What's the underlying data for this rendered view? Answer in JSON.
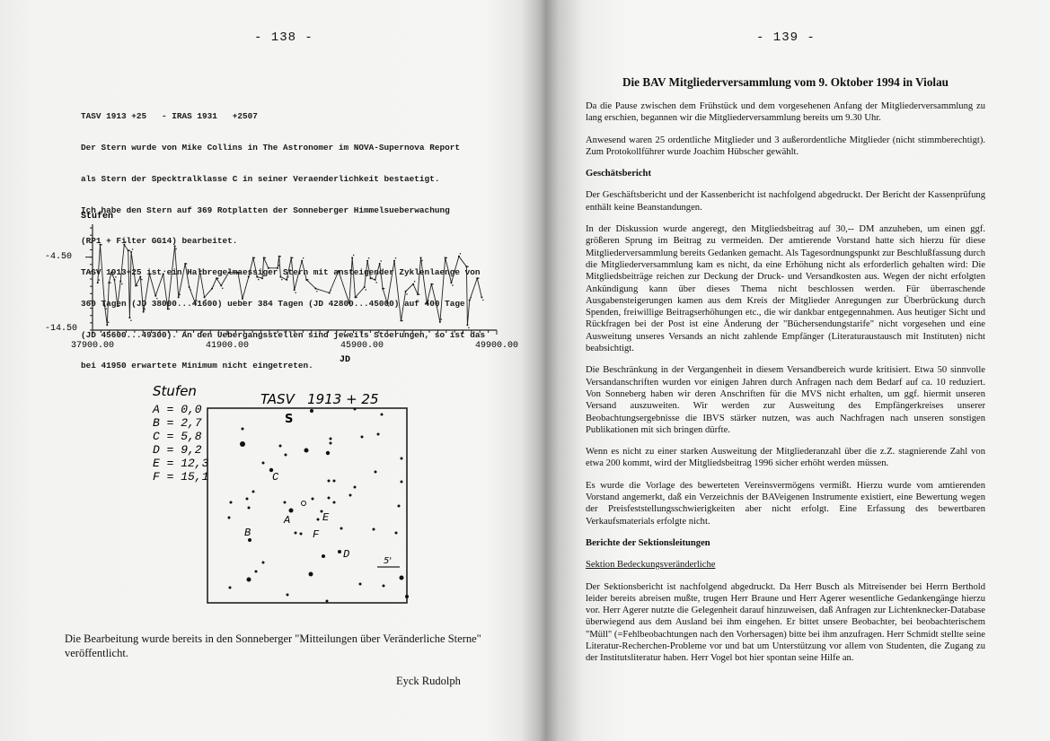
{
  "left_page": {
    "page_number": "- 138 -",
    "typewritten_lines": [
      "TASV 1913 +25   - IRAS 1931   +2507",
      "Der Stern wurde von Mike Collins in The Astronomer im NOVA-Supernova Report",
      "als Stern der Specktralklasse C in seiner Veraenderlichkeit bestaetigt.",
      "Ich habe den Stern auf 369 Rotplatten der Sonneberger Himmelsueberwachung",
      "(RP1 + Filter GG14) bearbeitet.",
      "TASV 1913+25 ist ein Halbregelmaessiger Stern mit ansteigender Zyklenlaenge von",
      "360 Tagen (JD 38000...41600) ueber 384 Tagen (JD 42800...45000) auf 400 Tage",
      "(JD 45600...49300). An den Uebergangsstellen sind jeweils Stoerungen, so ist das",
      "bei 41950 erwartete Minimum nicht eingetreten."
    ],
    "closing_text": "Die Bearbeitung wurde bereits in den Sonneberger \"Mitteilungen über Veränderliche Sterne\" veröffentlicht.",
    "author": "Eyck Rudolph",
    "finder_chart": {
      "legend_title": "Stufen",
      "legend": [
        "A = 0,0",
        "B = 2,7",
        "C = 5,8",
        "D = 9,2",
        "E = 12,3",
        "F = 15,1"
      ],
      "title": "TASV   1913 + 25",
      "orientation_label": "S",
      "scale_label": "5'",
      "star_labels": [
        "A",
        "B",
        "C",
        "D",
        "E",
        "F"
      ]
    }
  },
  "chart_data": {
    "type": "line",
    "ylabel": "Stufen",
    "xlabel": "JD",
    "xlim": [
      37900,
      49900
    ],
    "ylim": [
      -14.5,
      0
    ],
    "x_ticks": [
      "37900.00",
      "41900.00",
      "45900.00",
      "49900.00"
    ],
    "y_ticks": [
      "-4.50",
      "-14.50"
    ],
    "grid": false,
    "markers": true,
    "x": [
      38054,
      38126,
      38262,
      38334,
      38389,
      38461,
      38552,
      38642,
      38733,
      38842,
      38959,
      39004,
      39049,
      39185,
      39321,
      39411,
      39592,
      39773,
      39999,
      40135,
      40343,
      40452,
      40651,
      40769,
      40950,
      41086,
      41222,
      41448,
      41583,
      41719,
      41945,
      42217,
      42353,
      42534,
      42670,
      42787,
      42941,
      42986,
      43122,
      43393,
      43438,
      43484,
      43665,
      43800,
      43891,
      44117,
      44253,
      44524,
      44931,
      45203,
      45520,
      45611,
      45701,
      45973,
      46063,
      46154,
      46290,
      46425,
      46516,
      46652,
      46860,
      47059,
      47195,
      47421,
      47557,
      47647,
      47828,
      47964,
      48100,
      48217,
      48371,
      48552,
      48778,
      49004,
      49031,
      49094,
      49320,
      49456
    ],
    "y": [
      -8.0,
      -2.8,
      -11.2,
      -13.8,
      -8.0,
      -6.6,
      -7.6,
      -11.2,
      -7.8,
      -2.8,
      -3.6,
      -12.8,
      -3.8,
      -8.4,
      -7.2,
      -12.0,
      -6.8,
      -9.8,
      -6.8,
      -11.6,
      -3.0,
      -10.0,
      -5.4,
      -8.6,
      -10.8,
      -6.4,
      -10.0,
      -8.8,
      -7.4,
      -8.4,
      -6.6,
      -6.6,
      -10.2,
      -7.2,
      -4.6,
      -7.2,
      -7.4,
      -4.6,
      -6.0,
      -6.0,
      -4.4,
      -7.2,
      -7.6,
      -4.6,
      -9.0,
      -5.0,
      -7.6,
      -8.8,
      -9.4,
      -6.4,
      -10.8,
      -4.6,
      -10.0,
      -8.6,
      -5.0,
      -7.4,
      -7.6,
      -5.4,
      -8.8,
      -10.8,
      -5.0,
      -13.2,
      -9.2,
      -8.2,
      -9.6,
      -4.6,
      -10.8,
      -8.2,
      -10.8,
      -13.4,
      -4.6,
      -8.0,
      -4.4,
      -5.8,
      -13.8,
      -10.4,
      -7.4,
      -10.0
    ]
  },
  "right_page": {
    "page_number": "- 139 -",
    "title": "Die BAV Mitgliederversammlung vom 9. Oktober 1994 in Violau",
    "paragraphs": [
      "Da die Pause zwischen dem Frühstück und dem vorgesehenen Anfang der Mitgliederversammlung zu lang erschien, begannen wir die Mitgliederversammlung bereits um 9.30 Uhr.",
      "Anwesend waren 25 ordentliche Mitglieder und 3 außerordentliche Mitglieder (nicht stimmberechtigt). Zum Protokollführer wurde Joachim Hübscher gewählt."
    ],
    "heading_1": "Geschätsbericht",
    "paragraphs_2": [
      "Der Geschäftsbericht und der Kassenbericht ist nachfolgend abgedruckt. Der Bericht der Kassenprüfung enthält keine Beanstandungen.",
      "In der Diskussion wurde angeregt, den Mitgliedsbeitrag auf 30,-- DM anzuheben, um einen ggf. größeren Sprung im Beitrag zu vermeiden. Der amtierende Vorstand hatte sich hierzu für diese Mitgliederversammlung bereits Gedanken gemacht. Als Tagesordnungspunkt zur Beschlußfassung durch die Mitgliederversammlung kam es nicht, da eine Erhöhung nicht als erforderlich gehalten wird: Die Mitgliedsbeiträge reichen zur Deckung der Druck- und Versandkosten aus. Wegen der nicht erfolgten Ankündigung kann über dieses Thema nicht beschlossen werden. Für überraschende Ausgabensteigerungen kamen aus dem Kreis der Mitglieder Anregungen zur Überbrückung durch Spenden, freiwillige Beitragserhöhungen etc., die wir dankbar entgegennahmen. Aus heutiger Sicht und Rückfragen bei der Post ist eine Änderung der \"Büchersendungstarife\" nicht vorgesehen und eine Ausweitung unseres Versands an nicht zahlende Empfänger (Literaturaustausch mit Instituten) nicht beabsichtigt.",
      "Die Beschränkung in der Vergangenheit in diesem Versandbereich wurde kritisiert. Etwa 50 sinnvolle Versandanschriften wurden vor einigen Jahren durch Anfragen nach dem Bedarf auf ca. 10 reduziert. Von Sonneberg haben wir deren Anschriften für die MVS nicht erhalten, um ggf. hiermit unseren Versand auszuweiten. Wir werden zur Ausweitung des Empfängerkreises unserer Beobachtungsergebnisse die IBVS stärker nutzen, was auch Nachfragen nach unseren sonstigen Publikationen mit sich bringen dürfte.",
      "Wenn es nicht zu einer starken Ausweitung der Mitgliederanzahl über die z.Z. stagnierende Zahl von etwa 200 kommt, wird der Mitgliedsbeitrag 1996 sicher erhöht werden müssen.",
      "Es wurde die Vorlage des bewerteten Vereinsvermögens vermißt. Hierzu wurde vom amtierenden Vorstand angemerkt, daß ein Verzeichnis der BAVeigenen Instrumente existiert, eine Bewertung wegen der Preisfeststellungsschwierigkeiten aber nicht erfolgt. Eine Erfassung des bewertbaren Verkaufsmaterials erfolgte nicht."
    ],
    "heading_2": "Berichte der Sektionsleitungen",
    "subheading": "Sektion Bedeckungsveränderliche",
    "paragraph_3": "Der Sektionsbericht ist nachfolgend abgedruckt. Da Herr Busch als Mitreisender bei Herrn Berthold leider bereits abreisen mußte, trugen Herr Braune und Herr Agerer wesentliche Gedankengänge hierzu vor. Herr Agerer nutzte die Gelegenheit darauf hinzuweisen, daß Anfragen zur Lichtenknecker-Database überwiegend aus dem Ausland bei ihm eingehen. Er bittet unsere Beobachter, bei beobachterischem \"Müll\" (=Fehlbeobachtungen nach den Vorhersagen) bitte bei ihm anzufragen. Herr Schmidt stellte seine Literatur-Recherchen-Probleme vor und bat um Unterstützung vor allem von Studenten, die Zugang zu der Institutsliteratur haben. Herr Vogel bot hier spontan seine Hilfe an."
  }
}
